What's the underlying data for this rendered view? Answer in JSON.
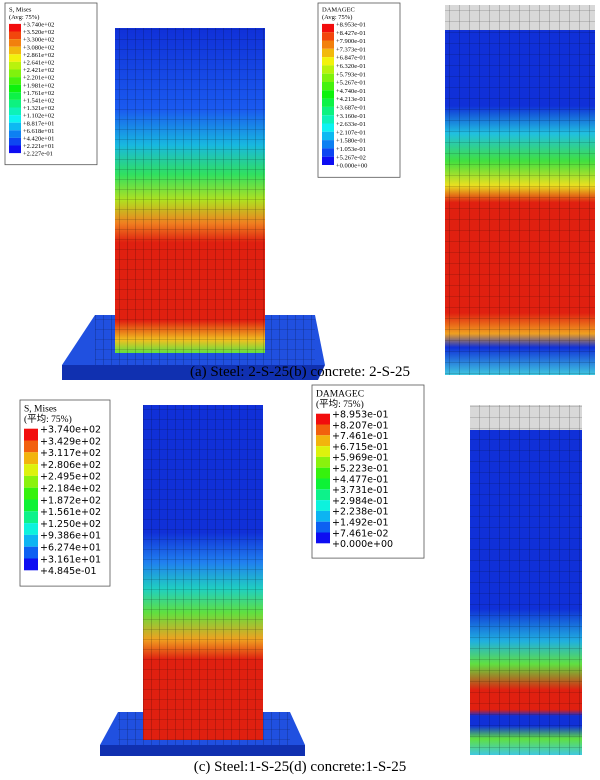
{
  "panels": [
    {
      "legend": {
        "title": "S, Mises",
        "subtitle": "(Avg: 75%)",
        "labels": [
          "+3.740e+02",
          "+3.520e+02",
          "+3.300e+02",
          "+3.080e+02",
          "+2.861e+02",
          "+2.641e+02",
          "+2.421e+02",
          "+2.201e+02",
          "+1.981e+02",
          "+1.761e+02",
          "+1.541e+02",
          "+1.321e+02",
          "+1.102e+02",
          "+8.817e+01",
          "+6.618e+01",
          "+4.420e+01",
          "+2.221e+01",
          "+2.227e-01"
        ]
      }
    },
    {
      "legend": {
        "title": "DAMAGEC",
        "subtitle": "(Avg: 75%)",
        "labels": [
          "+8.953e-01",
          "+8.427e-01",
          "+7.900e-01",
          "+7.373e-01",
          "+6.847e-01",
          "+6.320e-01",
          "+5.793e-01",
          "+5.267e-01",
          "+4.740e-01",
          "+4.213e-01",
          "+3.687e-01",
          "+3.160e-01",
          "+2.633e-01",
          "+2.107e-01",
          "+1.580e-01",
          "+1.053e-01",
          "+5.267e-02",
          "+0.000e+00"
        ]
      }
    },
    {
      "legend": {
        "title": "S, Mises",
        "subtitle": "(平均: 75%)",
        "labels": [
          "+3.740e+02",
          "+3.429e+02",
          "+3.117e+02",
          "+2.806e+02",
          "+2.495e+02",
          "+2.184e+02",
          "+1.872e+02",
          "+1.561e+02",
          "+1.250e+02",
          "+9.386e+01",
          "+6.274e+01",
          "+3.161e+01",
          "+4.845e-01"
        ]
      }
    },
    {
      "legend": {
        "title": "DAMAGEC",
        "subtitle": "(平均: 75%)",
        "labels": [
          "+8.953e-01",
          "+8.207e-01",
          "+7.461e-01",
          "+6.715e-01",
          "+5.969e-01",
          "+5.223e-01",
          "+4.477e-01",
          "+3.731e-01",
          "+2.984e-01",
          "+2.238e-01",
          "+1.492e-01",
          "+7.461e-02",
          "+0.000e+00"
        ]
      }
    }
  ],
  "captions": [
    "(a) Steel: 2-S-25(b) concrete: 2-S-25",
    "(c) Steel:1-S-25(d) concrete:1-S-25"
  ]
}
